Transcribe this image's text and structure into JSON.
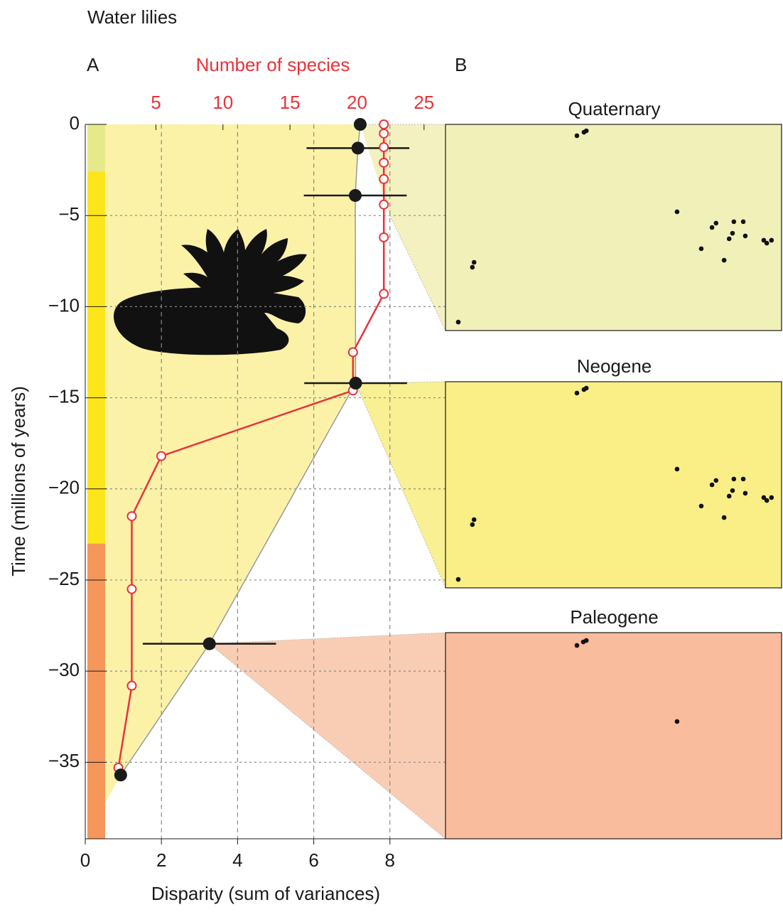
{
  "title": "Water lilies",
  "panel_a_label": "A",
  "panel_b_label": "B",
  "chart_data": [
    {
      "type": "line",
      "x_label": "Disparity (sum of variances)",
      "x2_label": "Number of species",
      "y_label": "Time (millions of years)",
      "xlim": [
        0,
        9.46
      ],
      "xticks": [
        0,
        2,
        4,
        6,
        8
      ],
      "x2lim": [
        -0.27,
        26.6
      ],
      "x2ticks": [
        5,
        10,
        15,
        20,
        25
      ],
      "ylim": [
        -39.2,
        0
      ],
      "yticks": [
        0,
        {
          "value": -5,
          "label": "−5"
        },
        {
          "value": -10,
          "label": "−10"
        },
        {
          "value": -15,
          "label": "−15"
        },
        {
          "value": -20,
          "label": "−20"
        },
        {
          "value": -25,
          "label": "−25"
        },
        {
          "value": -30,
          "label": "−30"
        },
        {
          "value": -35,
          "label": "−35"
        }
      ],
      "grid": true,
      "periods": [
        {
          "color": "#e6e98a",
          "top": 0,
          "bottom": -2.58
        },
        {
          "color": "#fde51b",
          "top": -2.58,
          "bottom": -23
        },
        {
          "color": "#f5965a",
          "top": -23,
          "bottom": -39.2
        }
      ],
      "disparity": {
        "color": "#1a1a1a",
        "x": [
          7.22,
          7.16,
          7.09,
          7.1,
          3.26,
          0.93
        ],
        "y": [
          0,
          -1.3,
          -3.9,
          -14.2,
          -28.5,
          -35.7
        ],
        "errors": [
          null,
          1.35,
          1.35,
          1.35,
          1.75,
          null
        ]
      },
      "species": {
        "color": "#e8333a",
        "x": [
          22,
          22,
          22,
          22,
          22,
          22,
          22,
          22,
          19.7,
          19.7,
          5.4,
          3.2,
          3.2,
          3.2,
          2.2
        ],
        "y": [
          0,
          -0.5,
          -1.25,
          -2.1,
          -3.0,
          -4.4,
          -6.2,
          -9.3,
          -12.5,
          -14.6,
          -18.2,
          -21.5,
          -25.5,
          -30.8,
          -35.3
        ]
      }
    },
    {
      "type": "scatter",
      "title": "Quaternary",
      "color": "#f0f0b9",
      "xlim": [
        0,
        100
      ],
      "ylim": [
        0,
        100
      ],
      "x": [
        39.1,
        41.2,
        41.9,
        68.9,
        8.0,
        8.5,
        3.8,
        79.3,
        80.5,
        85.8,
        88.6,
        85.4,
        84.4,
        89.2,
        76.1,
        82.9,
        94.7,
        95.6,
        97.0
      ],
      "y": [
        94.5,
        96.2,
        96.9,
        57.6,
        30.7,
        33.1,
        4.1,
        50,
        52.1,
        52.8,
        52.8,
        47.2,
        44.5,
        45.9,
        39.7,
        34.1,
        43.8,
        42.4,
        43.8
      ]
    },
    {
      "type": "scatter",
      "title": "Neogene",
      "color": "#f9ef86",
      "xlim": [
        0,
        100
      ],
      "ylim": [
        0,
        100
      ],
      "x": [
        39.1,
        41.2,
        41.9,
        68.9,
        8.0,
        8.5,
        3.8,
        79.3,
        80.5,
        85.8,
        88.6,
        85.4,
        84.4,
        89.2,
        76.1,
        82.9,
        94.7,
        95.6,
        97.0
      ],
      "y": [
        94.5,
        96.2,
        96.9,
        57.6,
        30.7,
        33.1,
        4.1,
        50,
        52.1,
        52.8,
        52.8,
        47.2,
        44.5,
        45.9,
        39.7,
        34.1,
        43.8,
        42.4,
        43.8
      ]
    },
    {
      "type": "scatter",
      "title": "Paleogene",
      "color": "#f9bc9c",
      "xlim": [
        0,
        100
      ],
      "ylim": [
        0,
        100
      ],
      "x": [
        39.1,
        41.0,
        41.9,
        68.9
      ],
      "y": [
        93.8,
        95.5,
        96.2,
        56.9
      ]
    }
  ]
}
